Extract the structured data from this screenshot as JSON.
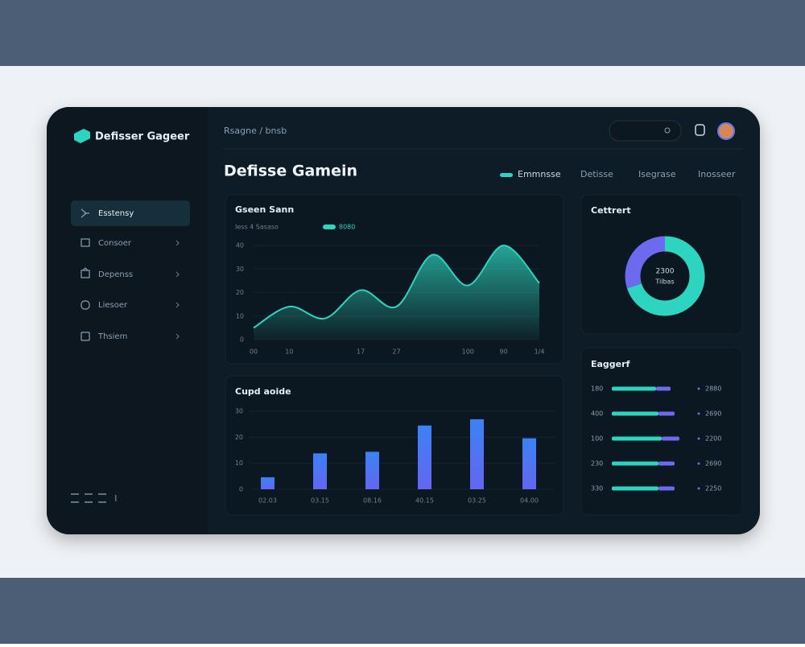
{
  "sidebar": {
    "brand": "Defisser Gageer",
    "nav": [
      "Esstensy",
      "Consoer",
      "Depenss",
      "Liesoer",
      "Thsiem"
    ]
  },
  "header": {
    "breadcrumb": "Rsagne / bnsb",
    "title": "Defisse Gamein",
    "tabs": [
      "Emmnsse",
      "Detisse",
      "Isegrase",
      "Inosseer"
    ]
  },
  "chart_data": [
    {
      "type": "area",
      "title": "Gseen Sann",
      "subtitle": "Iess 4 Sasaso",
      "categories": [
        "00",
        "10",
        null,
        "17",
        "27",
        null,
        "100",
        "90",
        "1/4"
      ],
      "series": [
        {
          "name": "8080",
          "color": "#2dd4bf",
          "values": [
            5,
            14,
            9,
            21,
            14,
            36,
            23,
            40,
            24
          ]
        }
      ],
      "ylim": [
        0,
        40
      ],
      "yticks": [
        0,
        10,
        20,
        30,
        40
      ],
      "grid": true
    },
    {
      "type": "bar",
      "title": "Cupd aoide",
      "categories": [
        "02.03",
        "03.15",
        "08.16",
        "40.15",
        "03.25",
        "04.00"
      ],
      "values": [
        4.6,
        13.8,
        14.4,
        24.5,
        26.9,
        19.6
      ],
      "color": "#5b7cf0",
      "ylim": [
        0,
        30
      ],
      "yticks": [
        0,
        10,
        20,
        30
      ],
      "grid": true
    },
    {
      "type": "donut",
      "title": "Cettrert",
      "center_value": "2300",
      "center_label": "Tilbas",
      "values": [
        70,
        30
      ],
      "colors": [
        "#2dd4bf",
        "#6d6af0"
      ]
    },
    {
      "type": "hbar",
      "title": "Eaggerf",
      "categories": [
        "180",
        "400",
        "100",
        "230",
        "330"
      ],
      "series": [
        {
          "color": "#2dd4bf",
          "values": [
            55,
            58,
            62,
            58,
            58
          ]
        },
        {
          "color": "#6d6af0",
          "values": [
            18,
            20,
            22,
            20,
            20
          ]
        }
      ],
      "xlim": [
        0,
        85
      ],
      "annotations": [
        "2880",
        "2690",
        "2200",
        "2690",
        "2250"
      ]
    }
  ]
}
